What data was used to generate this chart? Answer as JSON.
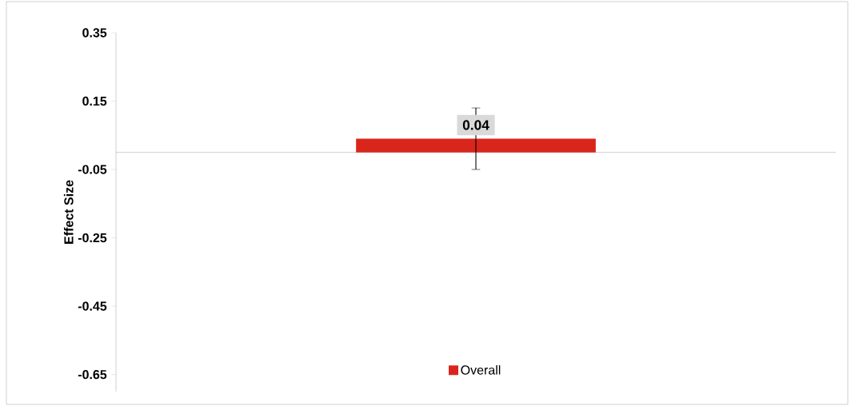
{
  "chart_data": {
    "type": "bar",
    "ylabel": "Effect Size",
    "categories": [
      null
    ],
    "series": [
      {
        "name": "Overall",
        "color": "#d9261c",
        "values": [
          0.04
        ],
        "errors": [
          [
            -0.05,
            0.13
          ]
        ]
      }
    ],
    "ylim": [
      -0.7,
      0.35
    ],
    "yticks": [
      -0.65,
      -0.45,
      -0.25,
      -0.05,
      0.15,
      0.35
    ],
    "data_labels": true,
    "legend": "bottom",
    "grid": false
  }
}
